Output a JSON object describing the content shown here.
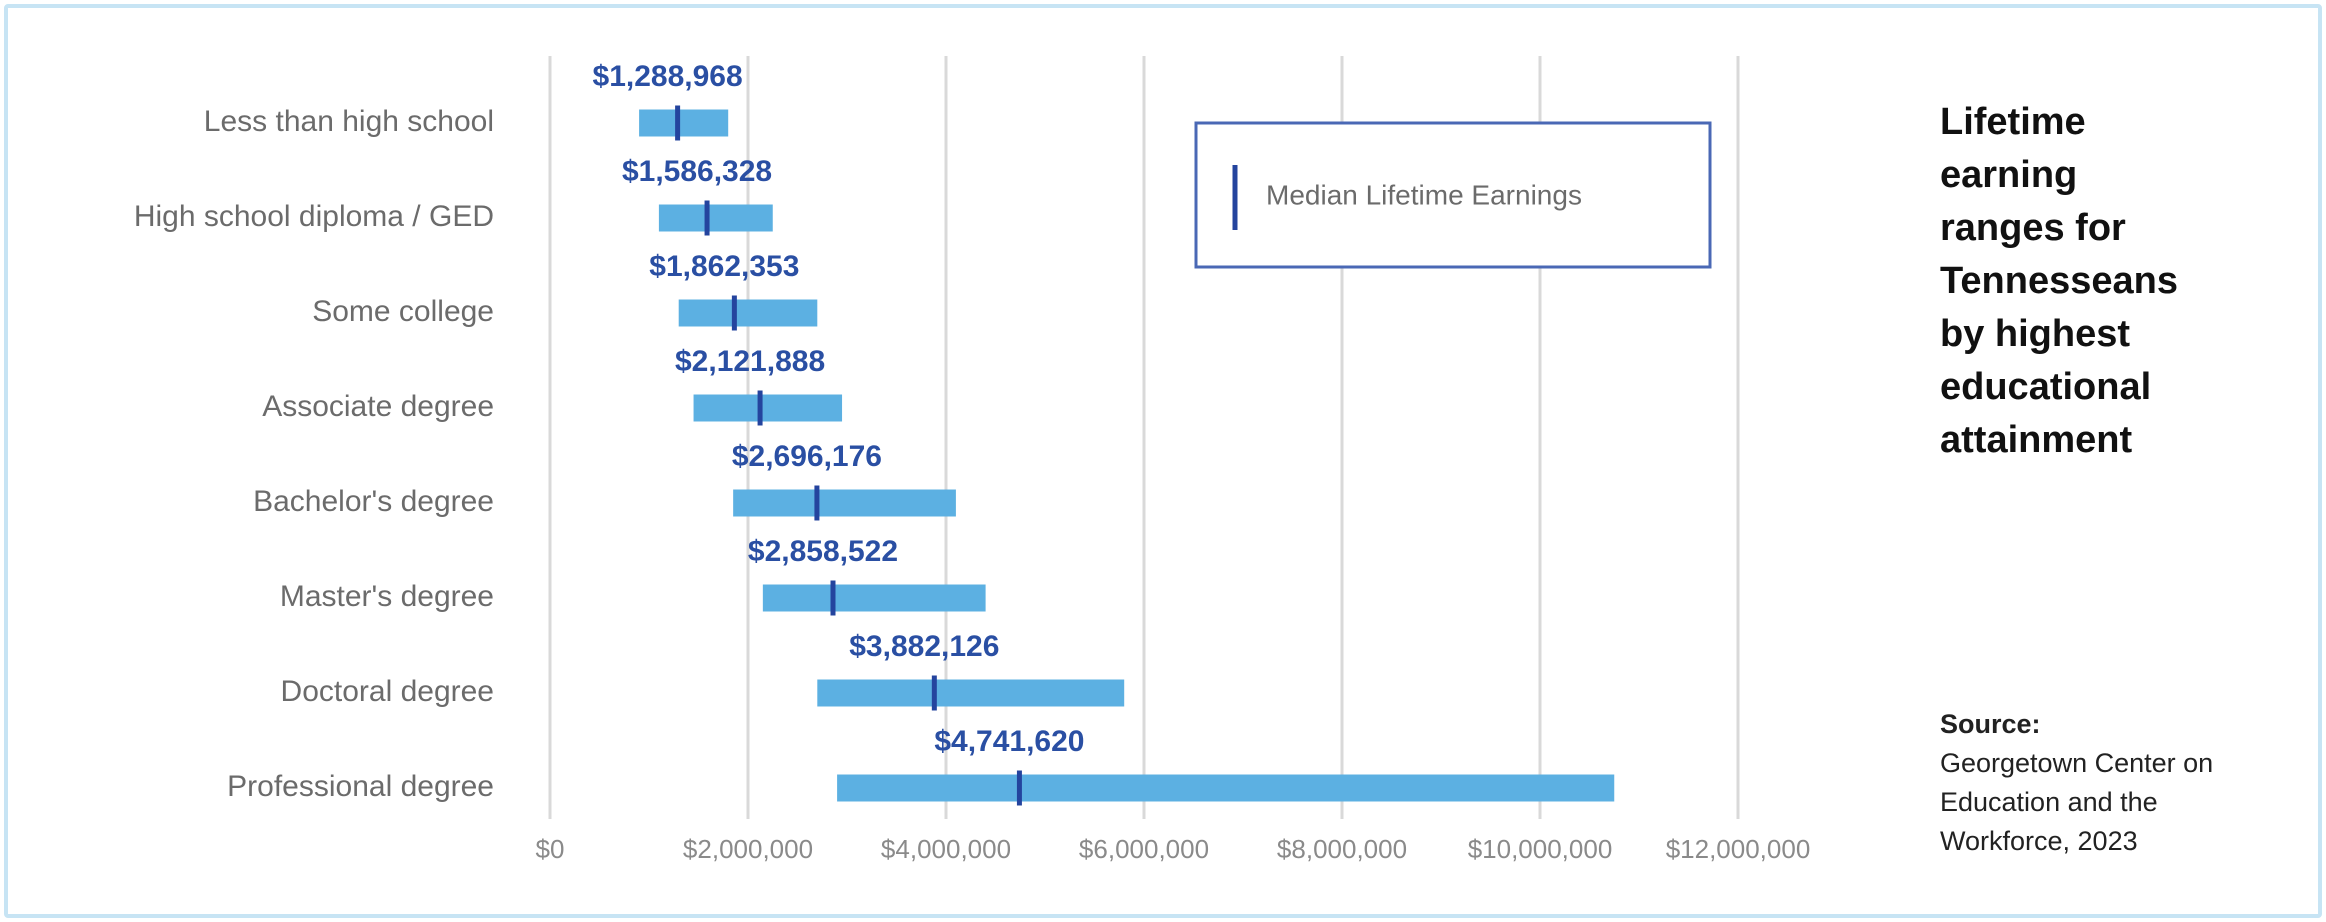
{
  "chart_data": {
    "type": "range-bar",
    "title": "Lifetime earning ranges for Tennesseans by highest educational attainment",
    "source_label": "Source:",
    "source": "Georgetown Center on Education and the Workforce, 2023",
    "categories": [
      "Less than high school",
      "High school diploma / GED",
      "Some college",
      "Associate degree",
      "Bachelor's degree",
      "Master's degree",
      "Doctoral degree",
      "Professional degree"
    ],
    "range_color": "#5cb0e2",
    "low": [
      900000,
      1100000,
      1300000,
      1450000,
      1850000,
      2150000,
      2700000,
      2900000
    ],
    "high": [
      1800000,
      2250000,
      2700000,
      2950000,
      4100000,
      4400000,
      5800000,
      10750000
    ],
    "series": [
      {
        "name": "Median Lifetime Earnings",
        "color": "#24449e",
        "values": [
          1288968,
          1586328,
          1862353,
          2121888,
          2696176,
          2858522,
          3882126,
          4741620
        ],
        "value_labels": [
          "$1,288,968",
          "$1,586,328",
          "$1,862,353",
          "$2,121,888",
          "$2,696,176",
          "$2,858,522",
          "$3,882,126",
          "$4,741,620"
        ]
      }
    ],
    "xlim": [
      0,
      12000000
    ],
    "xticks": [
      {
        "value": 0,
        "label": "$0"
      },
      {
        "value": 2000000,
        "label": "$2,000,000"
      },
      {
        "value": 4000000,
        "label": "$4,000,000"
      },
      {
        "value": 6000000,
        "label": "$6,000,000"
      },
      {
        "value": 8000000,
        "label": "$8,000,000"
      },
      {
        "value": 10000000,
        "label": "$10,000,000"
      },
      {
        "value": 12000000,
        "label": "$12,000,000"
      }
    ],
    "grid": true,
    "legend": "top-right"
  }
}
